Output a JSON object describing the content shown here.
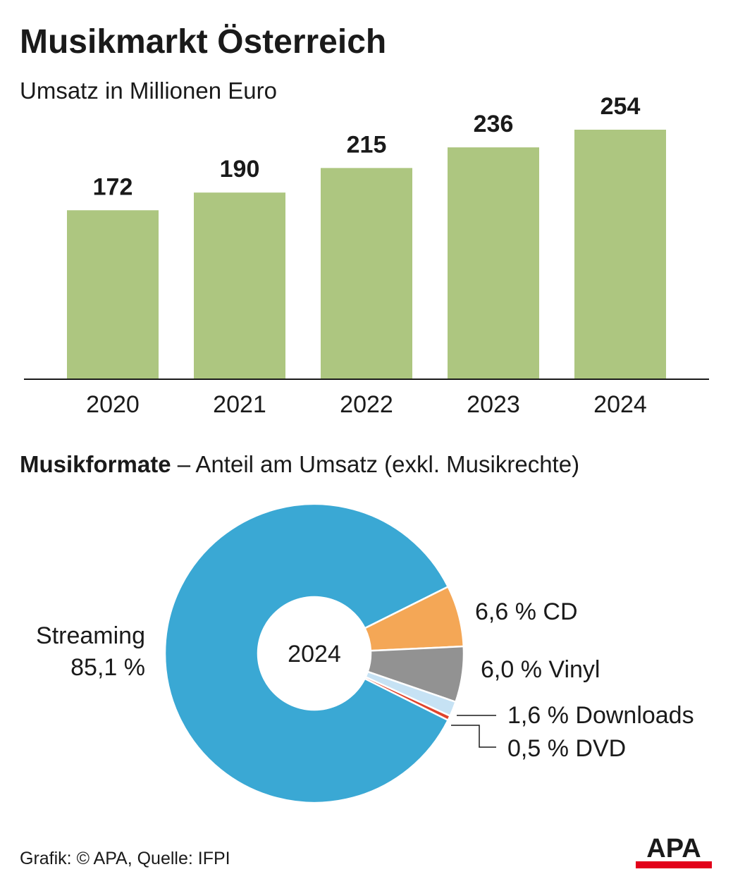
{
  "title": "Musikmarkt Österreich",
  "subtitle": "Umsatz in Millionen Euro",
  "bar_color": "#adc680",
  "chart_data": [
    {
      "type": "bar",
      "title": "Musikmarkt Österreich",
      "subtitle": "Umsatz in Millionen Euro",
      "categories": [
        "2020",
        "2021",
        "2022",
        "2023",
        "2024"
      ],
      "values": [
        172,
        190,
        215,
        236,
        254
      ],
      "value_labels": [
        "172",
        "190",
        "215",
        "236",
        "254"
      ],
      "ylim": [
        0,
        280
      ],
      "grid": false
    },
    {
      "type": "pie",
      "title": "Musikformate – Anteil am Umsatz (exkl. Musikrechte)",
      "center_label": "2024",
      "slices": [
        {
          "name": "Streaming",
          "value": 85.1,
          "label_name": "Streaming",
          "label_value": "85,1 %",
          "color": "#3aa8d4"
        },
        {
          "name": "CD",
          "value": 6.6,
          "label": "6,6 % CD",
          "color": "#f4a756"
        },
        {
          "name": "Vinyl",
          "value": 6.0,
          "label": "6,0 % Vinyl",
          "color": "#929292"
        },
        {
          "name": "Downloads",
          "value": 1.6,
          "label": "1,6 % Downloads",
          "color": "#c6e2f4"
        },
        {
          "name": "DVD",
          "value": 0.5,
          "label": "0,5 % DVD",
          "color": "#e0442c"
        }
      ]
    }
  ],
  "section2": {
    "bold": "Musikformate",
    "rest": " – Anteil am Umsatz (exkl. Musikrechte)"
  },
  "footer": "Grafik: © APA, Quelle: IFPI",
  "logo_text": "APA",
  "logo_colors": {
    "text": "#1a1a1a",
    "bar": "#e2001a"
  }
}
